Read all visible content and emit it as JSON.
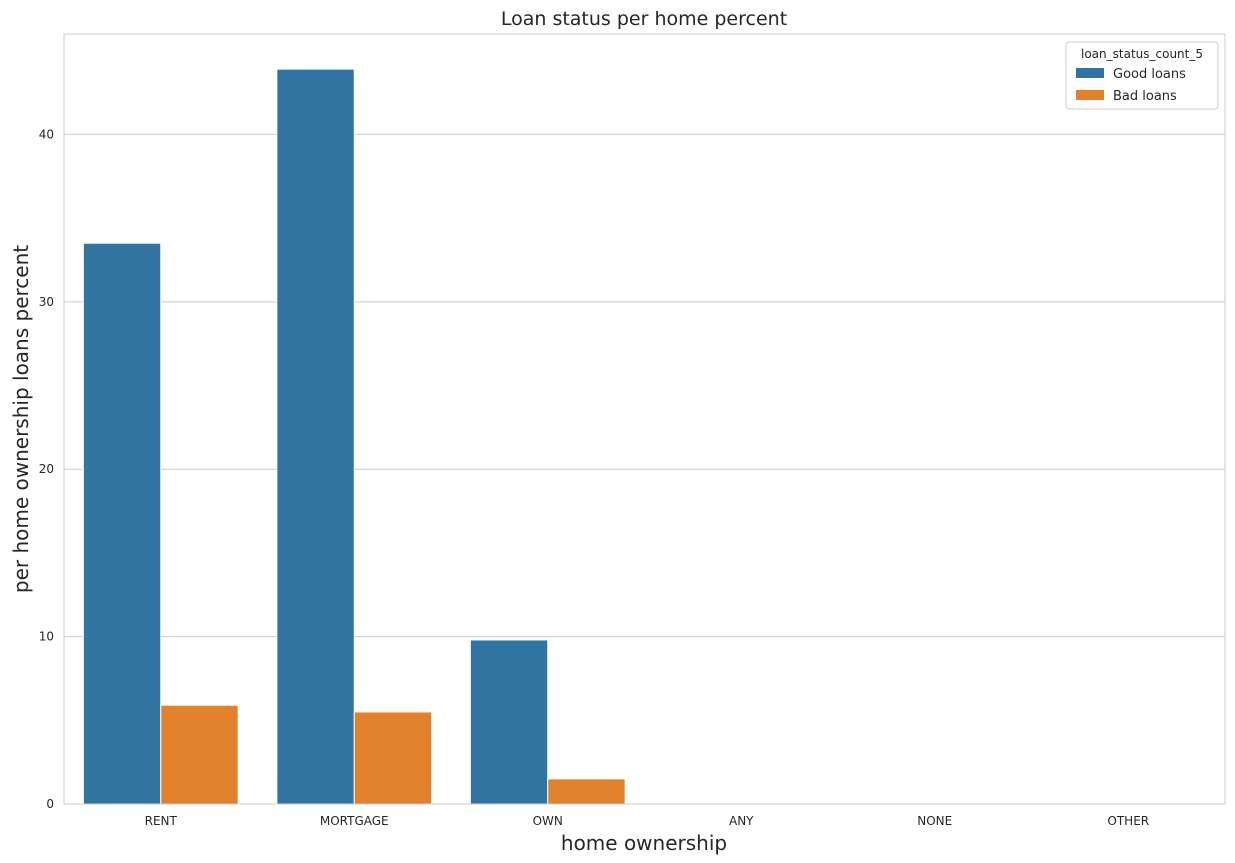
{
  "chart_data": {
    "type": "bar",
    "title": "Loan status per home percent",
    "xlabel": "home ownership",
    "ylabel": "per home ownership loans percent",
    "categories": [
      "RENT",
      "MORTGAGE",
      "OWN",
      "ANY",
      "NONE",
      "OTHER"
    ],
    "series": [
      {
        "name": "Good loans",
        "color": "#3274a1",
        "values": [
          33.5,
          43.9,
          9.8,
          0.0,
          0.0,
          0.0
        ]
      },
      {
        "name": "Bad loans",
        "color": "#e1812c",
        "values": [
          5.9,
          5.5,
          1.5,
          0.0,
          0.0,
          0.0
        ]
      }
    ],
    "ylim": [
      0,
      46
    ],
    "yticks": [
      0,
      10,
      20,
      30,
      40
    ],
    "grid": true,
    "legend": {
      "title": "loan_status_count_5",
      "placement": "top-right"
    }
  }
}
